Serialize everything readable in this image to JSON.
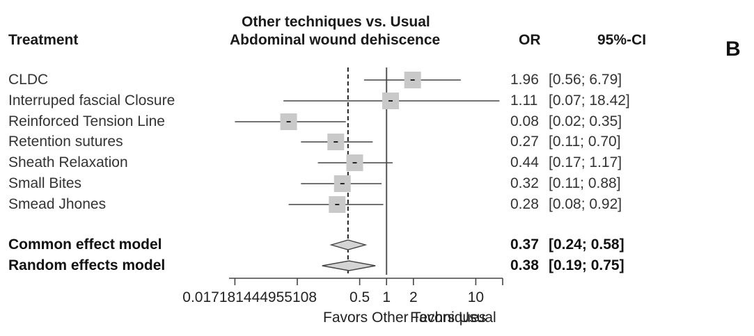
{
  "panel_label": "B",
  "header": {
    "treatment": "Treatment",
    "title_line1": "Other techniques vs. Usual",
    "title_line2": "Abdominal wound dehiscence",
    "or": "OR",
    "ci": "95%-CI"
  },
  "chart_data": {
    "type": "forest",
    "title": "Other techniques vs. Usual",
    "subtitle": "Abdominal wound dehiscence",
    "xscale": "log",
    "xlim": [
      0.0172,
      20
    ],
    "ticks": [
      0.017181444955108,
      0.5,
      1,
      2,
      10
    ],
    "tick_labels": [
      "0.017181444955108",
      "0.5",
      "1",
      "2",
      "10"
    ],
    "xlabel_left": "Favors Other Techniques",
    "xlabel_right": "Favors Usual",
    "reference_line": 1,
    "pooled_line": 0.37,
    "studies": [
      {
        "name": "CLDC",
        "or": 1.96,
        "lo": 0.56,
        "hi": 6.79,
        "or_text": "1.96",
        "ci_text": "[0.56;  6.79]"
      },
      {
        "name": "Interruped fascial Closure",
        "or": 1.11,
        "lo": 0.07,
        "hi": 18.42,
        "or_text": "1.11",
        "ci_text": "[0.07; 18.42]"
      },
      {
        "name": "Reinforced Tension Line",
        "or": 0.08,
        "lo": 0.02,
        "hi": 0.35,
        "or_text": "0.08",
        "ci_text": "[0.02;  0.35]"
      },
      {
        "name": "Retention sutures",
        "or": 0.27,
        "lo": 0.11,
        "hi": 0.7,
        "or_text": "0.27",
        "ci_text": "[0.11;  0.70]"
      },
      {
        "name": "Sheath Relaxation",
        "or": 0.44,
        "lo": 0.17,
        "hi": 1.17,
        "or_text": "0.44",
        "ci_text": "[0.17;  1.17]"
      },
      {
        "name": "Small Bites",
        "or": 0.32,
        "lo": 0.11,
        "hi": 0.88,
        "or_text": "0.32",
        "ci_text": "[0.11;  0.88]"
      },
      {
        "name": "Smead Jhones",
        "or": 0.28,
        "lo": 0.08,
        "hi": 0.92,
        "or_text": "0.28",
        "ci_text": "[0.08;  0.92]"
      }
    ],
    "summaries": [
      {
        "name": "Common effect model",
        "or": 0.37,
        "lo": 0.24,
        "hi": 0.58,
        "or_text": "0.37",
        "ci_text": "[0.24;  0.58]"
      },
      {
        "name": "Random effects model",
        "or": 0.38,
        "lo": 0.19,
        "hi": 0.75,
        "or_text": "0.38",
        "ci_text": "[0.19;  0.75]"
      }
    ]
  }
}
